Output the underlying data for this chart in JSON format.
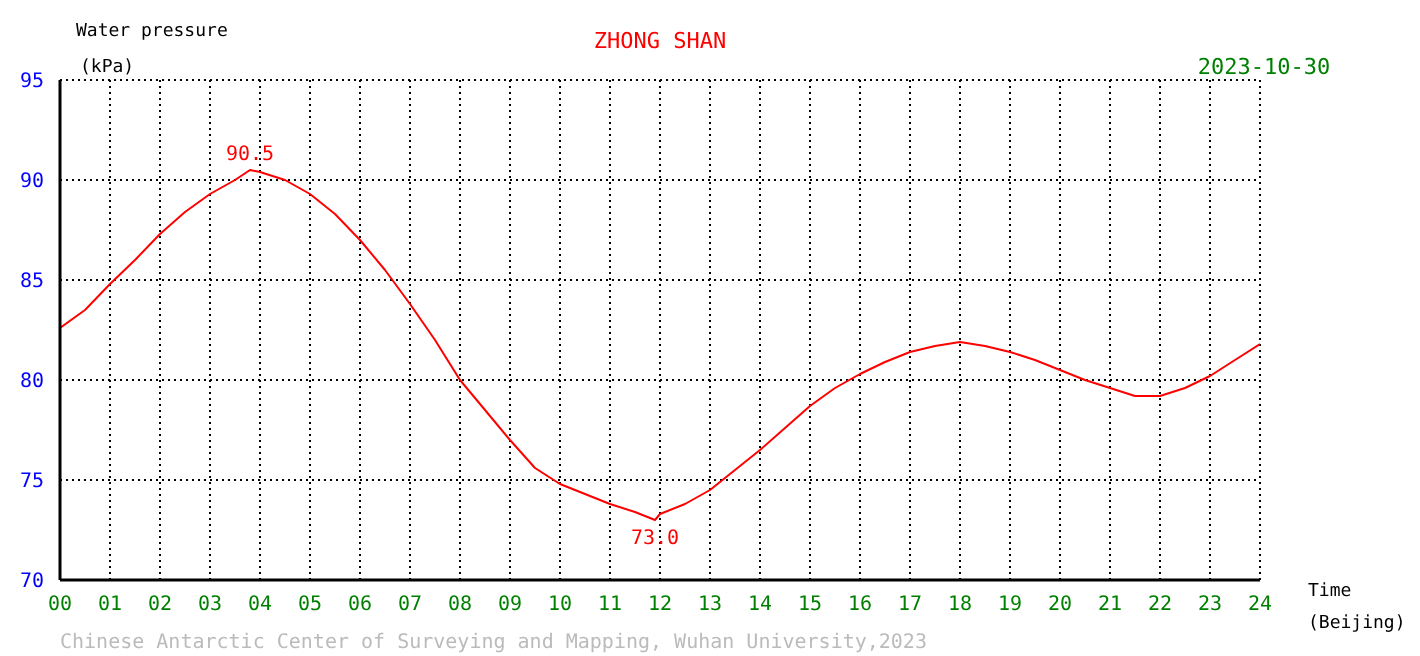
{
  "chart_data": {
    "type": "line",
    "title": "ZHONG SHAN",
    "xlabel": "Time (Beijing)",
    "ylabel": "Water pressure (kPa)",
    "annotations": [
      "2023-10-30",
      "Chinese Antarctic Center of Surveying and Mapping, Wuhan University,2023",
      {
        "text": "90.5",
        "x": 3.8,
        "y": 90.5
      },
      {
        "text": "73.0",
        "x": 11.9,
        "y": 73.0
      }
    ],
    "x": [
      0,
      0.5,
      1,
      1.5,
      2,
      2.5,
      3,
      3.5,
      3.8,
      4,
      4.5,
      5,
      5.5,
      6,
      6.5,
      7,
      7.5,
      8,
      8.5,
      9,
      9.5,
      10,
      10.5,
      11,
      11.5,
      11.9,
      12,
      12.5,
      13,
      13.5,
      14,
      14.5,
      15,
      15.5,
      16,
      16.5,
      17,
      17.5,
      18,
      18.5,
      19,
      19.5,
      20,
      20.5,
      21,
      21.5,
      22,
      22.5,
      23,
      23.5,
      24
    ],
    "series": [
      {
        "color": "#ff0000",
        "values": [
          82.6,
          83.5,
          84.8,
          86,
          87.3,
          88.4,
          89.3,
          90,
          90.5,
          90.4,
          90,
          89.3,
          88.3,
          87,
          85.5,
          83.8,
          82,
          80,
          78.5,
          77,
          75.6,
          74.8,
          74.3,
          73.8,
          73.4,
          73,
          73.3,
          73.8,
          74.5,
          75.5,
          76.5,
          77.6,
          78.7,
          79.6,
          80.3,
          80.9,
          81.4,
          81.7,
          81.9,
          81.7,
          81.4,
          81,
          80.5,
          80,
          79.6,
          79.2,
          79.2,
          79.6,
          80.2,
          81,
          81.8
        ]
      }
    ],
    "xlim": [
      0,
      24
    ],
    "xticks": [
      {
        "value": 0,
        "label": "00"
      },
      {
        "value": 1,
        "label": "01"
      },
      {
        "value": 2,
        "label": "02"
      },
      {
        "value": 3,
        "label": "03"
      },
      {
        "value": 4,
        "label": "04"
      },
      {
        "value": 5,
        "label": "05"
      },
      {
        "value": 6,
        "label": "06"
      },
      {
        "value": 7,
        "label": "07"
      },
      {
        "value": 8,
        "label": "08"
      },
      {
        "value": 9,
        "label": "09"
      },
      10,
      11,
      12,
      13,
      14,
      15,
      16,
      17,
      18,
      19,
      20,
      21,
      22,
      23,
      24
    ],
    "ylim": [
      70,
      95
    ],
    "yticks": [
      70,
      75,
      80,
      85,
      90,
      95
    ],
    "grid": true,
    "marker": "none",
    "line_style": "solid"
  }
}
